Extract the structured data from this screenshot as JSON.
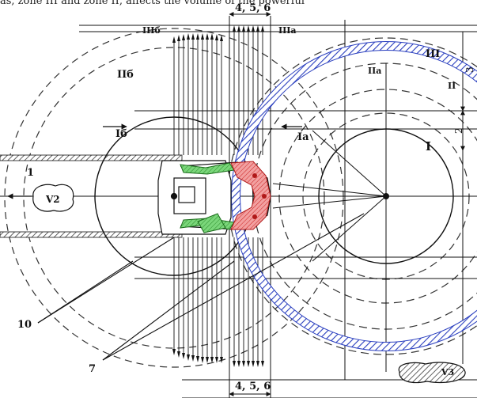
{
  "caption": "as, zone III and zone II, affects the volume of the powerful",
  "labels": {
    "dim_top": "4, 5, 6",
    "dim_bottom": "4, 5, 6",
    "zone_II6_top": "IIб",
    "zone_III6": "IIIб",
    "zone_IIIa": "IIIа",
    "zone_IIa": "IIа",
    "zone_III": "III",
    "zone_II": "II",
    "zone_Ia": "Iа",
    "zone_I": "I",
    "zone_I6": "Iб",
    "zone_II6": "IIб",
    "num_1": "1",
    "v2": "V2",
    "v3": "V3",
    "num_10": "10",
    "num_7": "7",
    "dim_2": "2",
    "dim_3": "3"
  },
  "colors": {
    "ring": "#2a3fbf",
    "green": "#3aa83a",
    "red": "#d63a3a",
    "line": "#111111"
  }
}
